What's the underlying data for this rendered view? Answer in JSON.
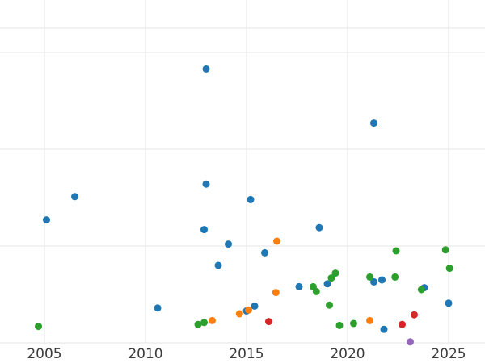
{
  "chart_data": {
    "type": "scatter",
    "title": "",
    "xlabel": "",
    "ylabel": "",
    "x_ticks": [
      2005,
      2010,
      2015,
      2020,
      2025
    ],
    "x_range": [
      2002.8,
      2026.8
    ],
    "y_range": [
      -0.21,
      3.54
    ],
    "y_axis_note": "y axis unlabeled; values estimated in gridline units (bottom horizontal gridline = 0, one unit per gridline)",
    "grid": true,
    "legend_position": "none",
    "marker": "circle",
    "marker_radius_px": 4.5,
    "series": [
      {
        "name": "blue",
        "color": "#1f77b4",
        "points": [
          [
            2005.1,
            1.27
          ],
          [
            2006.5,
            1.51
          ],
          [
            2013.0,
            2.83
          ],
          [
            2021.3,
            2.27
          ],
          [
            2013.0,
            1.64
          ],
          [
            2015.2,
            1.48
          ],
          [
            2012.9,
            1.17
          ],
          [
            2014.1,
            1.02
          ],
          [
            2013.6,
            0.8
          ],
          [
            2015.9,
            0.93
          ],
          [
            2018.6,
            1.19
          ],
          [
            2017.6,
            0.58
          ],
          [
            2015.4,
            0.38
          ],
          [
            2015.0,
            0.33
          ],
          [
            2010.6,
            0.36
          ],
          [
            2021.3,
            0.63
          ],
          [
            2021.7,
            0.65
          ],
          [
            2021.8,
            0.14
          ],
          [
            2025.0,
            0.41
          ],
          [
            2023.8,
            0.57
          ],
          [
            2019.0,
            0.61
          ]
        ]
      },
      {
        "name": "green",
        "color": "#2ca02c",
        "points": [
          [
            2004.7,
            0.17
          ],
          [
            2012.6,
            0.19
          ],
          [
            2012.9,
            0.21
          ],
          [
            2019.1,
            0.39
          ],
          [
            2019.6,
            0.18
          ],
          [
            2019.2,
            0.67
          ],
          [
            2019.4,
            0.72
          ],
          [
            2018.3,
            0.58
          ],
          [
            2018.45,
            0.53
          ],
          [
            2021.1,
            0.68
          ],
          [
            2022.35,
            0.68
          ],
          [
            2022.4,
            0.95
          ],
          [
            2023.65,
            0.55
          ],
          [
            2024.85,
            0.96
          ],
          [
            2025.05,
            0.77
          ],
          [
            2020.3,
            0.2
          ]
        ]
      },
      {
        "name": "orange",
        "color": "#ff7f0e",
        "points": [
          [
            2016.5,
            1.05
          ],
          [
            2016.45,
            0.52
          ],
          [
            2013.3,
            0.23
          ],
          [
            2014.65,
            0.3
          ],
          [
            2015.1,
            0.34
          ],
          [
            2021.1,
            0.23
          ]
        ]
      },
      {
        "name": "red",
        "color": "#d62728",
        "points": [
          [
            2016.1,
            0.22
          ],
          [
            2022.7,
            0.19
          ],
          [
            2023.3,
            0.29
          ]
        ]
      },
      {
        "name": "purple",
        "color": "#9467bd",
        "points": [
          [
            2023.1,
            0.01
          ]
        ]
      }
    ]
  },
  "colors": {
    "background": "#ffffff",
    "gridline": "#e5e5e5",
    "tick_label": "#3d3d3d"
  }
}
